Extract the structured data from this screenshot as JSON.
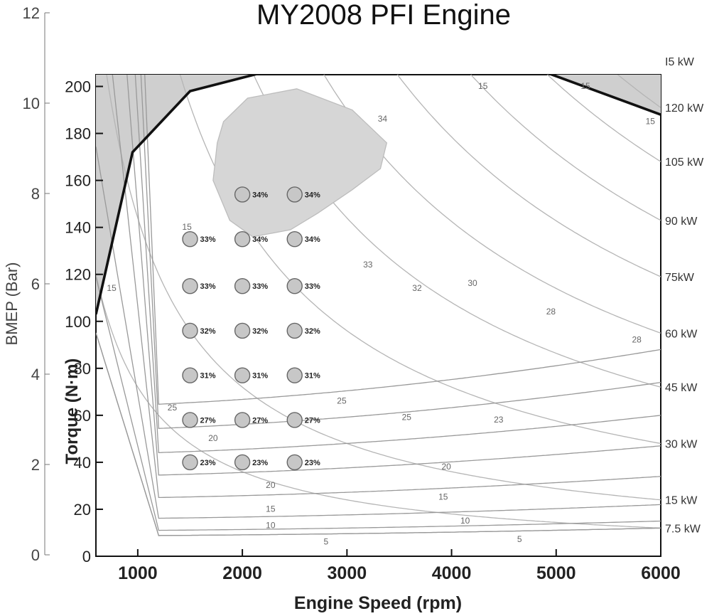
{
  "chart_data": {
    "type": "scatter",
    "title": "MY2008 PFI Engine",
    "xlabel": "Engine Speed (rpm)",
    "ylabel": "Torque (N·m)",
    "y2label": "BMEP (Bar)",
    "xlim": [
      600,
      6000
    ],
    "ylim": [
      0,
      205
    ],
    "y2lim": [
      0,
      12
    ],
    "xticks": [
      "1000",
      "2000",
      "3000",
      "4000",
      "5000",
      "6000"
    ],
    "yticks": [
      "0",
      "20",
      "40",
      "60",
      "80",
      "100",
      "120",
      "140",
      "160",
      "180",
      "200"
    ],
    "y2ticks": [
      "0",
      "2",
      "4",
      "6",
      "8",
      "10",
      "12"
    ],
    "series": [
      {
        "points": [
          {
            "x": 1500,
            "y": 40,
            "label": "23%"
          },
          {
            "x": 2000,
            "y": 40,
            "label": "23%"
          },
          {
            "x": 2500,
            "y": 40,
            "label": "23%"
          },
          {
            "x": 1500,
            "y": 58,
            "label": "27%"
          },
          {
            "x": 2000,
            "y": 58,
            "label": "27%"
          },
          {
            "x": 2500,
            "y": 58,
            "label": "27%"
          },
          {
            "x": 1500,
            "y": 77,
            "label": "31%"
          },
          {
            "x": 2000,
            "y": 77,
            "label": "31%"
          },
          {
            "x": 2500,
            "y": 77,
            "label": "31%"
          },
          {
            "x": 1500,
            "y": 96,
            "label": "32%"
          },
          {
            "x": 2000,
            "y": 96,
            "label": "32%"
          },
          {
            "x": 2500,
            "y": 96,
            "label": "32%"
          },
          {
            "x": 1500,
            "y": 115,
            "label": "33%"
          },
          {
            "x": 2000,
            "y": 115,
            "label": "33%"
          },
          {
            "x": 2500,
            "y": 115,
            "label": "33%"
          },
          {
            "x": 1500,
            "y": 135,
            "label": "33%"
          },
          {
            "x": 2000,
            "y": 135,
            "label": "34%"
          },
          {
            "x": 2500,
            "y": 135,
            "label": "34%"
          },
          {
            "x": 2000,
            "y": 154,
            "label": "34%"
          },
          {
            "x": 2500,
            "y": 154,
            "label": "34%"
          }
        ]
      }
    ],
    "power_labels": [
      {
        "text": "7.5 kW",
        "y": 12
      },
      {
        "text": "15 kW",
        "y": 24
      },
      {
        "text": "30 kW",
        "y": 48
      },
      {
        "text": "45 kW",
        "y": 72
      },
      {
        "text": "60 kW",
        "y": 95
      },
      {
        "text": "75kW",
        "y": 119
      },
      {
        "text": "90 kW",
        "y": 143
      },
      {
        "text": "105 kW",
        "y": 168
      },
      {
        "text": "120 kW",
        "y": 191
      },
      {
        "text": "I5 kW",
        "y": 212
      }
    ],
    "wot_curve": [
      [
        600,
        103
      ],
      [
        950,
        172
      ],
      [
        1500,
        198
      ],
      [
        2200,
        206
      ],
      [
        4900,
        206
      ],
      [
        6000,
        188
      ]
    ],
    "efficiency_contours": [
      {
        "label": "5",
        "x": 1500,
        "y": 12
      },
      {
        "label": "10",
        "x": 2000,
        "y": 12
      },
      {
        "label": "15",
        "x": 2600,
        "y": 15
      },
      {
        "label": "20",
        "x": 3000,
        "y": 22
      },
      {
        "label": "23",
        "x": 3500,
        "y": 34
      },
      {
        "label": "25",
        "x": 4000,
        "y": 47
      },
      {
        "label": "28",
        "x": 4500,
        "y": 60
      },
      {
        "label": "30",
        "x": 5000,
        "y": 74
      },
      {
        "label": "32",
        "x": 5500,
        "y": 88
      }
    ],
    "contour_labels": [
      {
        "text": "5",
        "x": 2800,
        "y": 5
      },
      {
        "text": "5",
        "x": 4650,
        "y": 6
      },
      {
        "text": "10",
        "x": 2270,
        "y": 12
      },
      {
        "text": "10",
        "x": 4130,
        "y": 14
      },
      {
        "text": "15",
        "x": 2270,
        "y": 19
      },
      {
        "text": "15",
        "x": 3920,
        "y": 24
      },
      {
        "text": "20",
        "x": 2270,
        "y": 29
      },
      {
        "text": "20",
        "x": 3950,
        "y": 37
      },
      {
        "text": "20",
        "x": 1720,
        "y": 49
      },
      {
        "text": "23",
        "x": 4450,
        "y": 57
      },
      {
        "text": "25",
        "x": 3570,
        "y": 58
      },
      {
        "text": "25",
        "x": 2950,
        "y": 65
      },
      {
        "text": "25",
        "x": 1330,
        "y": 62
      },
      {
        "text": "28",
        "x": 5770,
        "y": 91
      },
      {
        "text": "28",
        "x": 4950,
        "y": 103
      },
      {
        "text": "30",
        "x": 4200,
        "y": 115
      },
      {
        "text": "32",
        "x": 3670,
        "y": 113
      },
      {
        "text": "33",
        "x": 3200,
        "y": 123
      },
      {
        "text": "15",
        "x": 750,
        "y": 113
      },
      {
        "text": "15",
        "x": 1470,
        "y": 139
      },
      {
        "text": "15",
        "x": 4300,
        "y": 199
      },
      {
        "text": "15",
        "x": 5280,
        "y": 199
      },
      {
        "text": "15",
        "x": 5900,
        "y": 184
      },
      {
        "text": "34",
        "x": 3340,
        "y": 185
      }
    ]
  }
}
